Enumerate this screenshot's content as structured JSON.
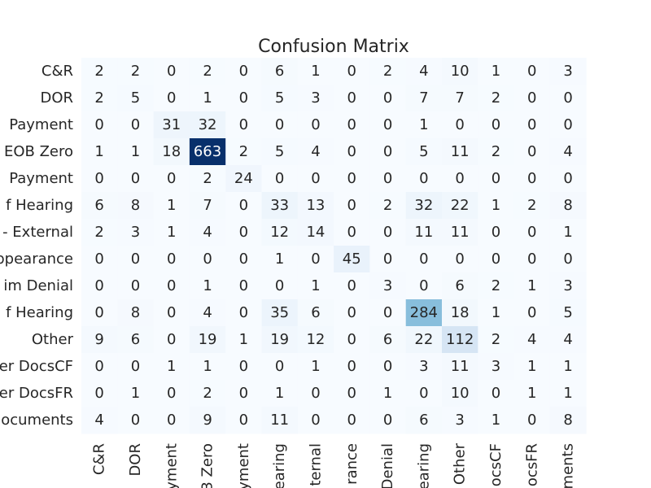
{
  "chart_data": {
    "type": "heatmap",
    "title": "Confusion Matrix",
    "colormap": "Blues",
    "color_low": "#f7fbff",
    "color_high": "#08306b",
    "vmin": 0,
    "vmax": 663,
    "grid": false,
    "legend": "none",
    "row_labels": [
      "C&R",
      "DOR",
      "Payment",
      "EOB Zero",
      "Payment",
      "f Hearing",
      "- External",
      "ppearance",
      "im Denial",
      "f Hearing",
      "Other",
      "er DocsCF",
      "er DocsFR",
      "ocuments"
    ],
    "col_labels": [
      "C&R",
      "DOR",
      "yment",
      "3 Zero",
      "yment",
      "earing",
      "ternal",
      "rance",
      "Denial",
      "earing",
      "Other",
      "ocsCF",
      "ocsFR",
      "ments"
    ],
    "values": [
      [
        2,
        2,
        0,
        2,
        0,
        6,
        1,
        0,
        2,
        4,
        10,
        1,
        0,
        3
      ],
      [
        2,
        5,
        0,
        1,
        0,
        5,
        3,
        0,
        0,
        7,
        7,
        2,
        0,
        0
      ],
      [
        0,
        0,
        31,
        32,
        0,
        0,
        0,
        0,
        0,
        1,
        0,
        0,
        0,
        0
      ],
      [
        1,
        1,
        18,
        663,
        2,
        5,
        4,
        0,
        0,
        5,
        11,
        2,
        0,
        4
      ],
      [
        0,
        0,
        0,
        2,
        24,
        0,
        0,
        0,
        0,
        0,
        0,
        0,
        0,
        0
      ],
      [
        6,
        8,
        1,
        7,
        0,
        33,
        13,
        0,
        2,
        32,
        22,
        1,
        2,
        8
      ],
      [
        2,
        3,
        1,
        4,
        0,
        12,
        14,
        0,
        0,
        11,
        11,
        0,
        0,
        1
      ],
      [
        0,
        0,
        0,
        0,
        0,
        1,
        0,
        45,
        0,
        0,
        0,
        0,
        0,
        0
      ],
      [
        0,
        0,
        0,
        1,
        0,
        0,
        1,
        0,
        3,
        0,
        6,
        2,
        1,
        3
      ],
      [
        0,
        8,
        0,
        4,
        0,
        35,
        6,
        0,
        0,
        284,
        18,
        1,
        0,
        5
      ],
      [
        9,
        6,
        0,
        19,
        1,
        19,
        12,
        0,
        6,
        22,
        112,
        2,
        4,
        4
      ],
      [
        0,
        0,
        1,
        1,
        0,
        0,
        1,
        0,
        0,
        3,
        11,
        3,
        1,
        1
      ],
      [
        0,
        1,
        0,
        2,
        0,
        1,
        0,
        0,
        1,
        0,
        10,
        0,
        1,
        1
      ],
      [
        4,
        0,
        0,
        9,
        0,
        11,
        0,
        0,
        0,
        6,
        3,
        1,
        0,
        8
      ]
    ]
  }
}
